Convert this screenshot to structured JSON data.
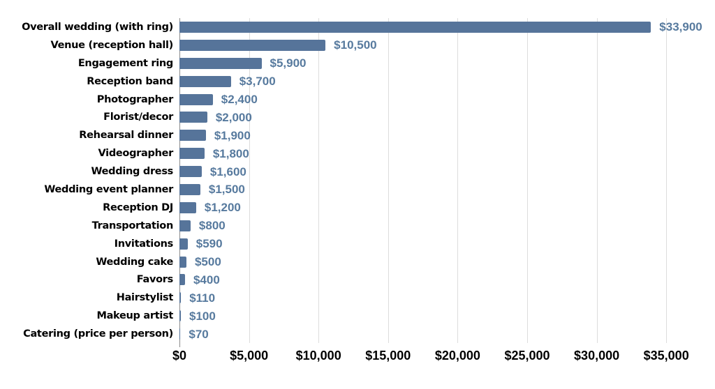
{
  "chart_data": {
    "type": "bar",
    "orientation": "horizontal",
    "title": "",
    "categories": [
      "Overall wedding (with ring)",
      "Venue (reception hall)",
      "Engagement ring",
      "Reception band",
      "Photographer",
      "Florist/decor",
      "Rehearsal dinner",
      "Videographer",
      "Wedding dress",
      "Wedding event planner",
      "Reception DJ",
      "Transportation",
      "Invitations",
      "Wedding cake",
      "Favors",
      "Hairstylist",
      "Makeup artist",
      "Catering (price per person)"
    ],
    "values": [
      33900,
      10500,
      5900,
      3700,
      2400,
      2000,
      1900,
      1800,
      1600,
      1500,
      1200,
      800,
      590,
      500,
      400,
      110,
      100,
      70
    ],
    "value_labels": [
      "$33,900",
      "$10,500",
      "$5,900",
      "$3,700",
      "$2,400",
      "$2,000",
      "$1,900",
      "$1,800",
      "$1,600",
      "$1,500",
      "$1,200",
      "$800",
      "$590",
      "$500",
      "$400",
      "$110",
      "$100",
      "$70"
    ],
    "x_ticks": [
      "$0",
      "$5,000",
      "$10,000",
      "$15,000",
      "$20,000",
      "$25,000",
      "$30,000",
      "$35,000"
    ],
    "x_tick_values": [
      0,
      5000,
      10000,
      15000,
      20000,
      25000,
      30000,
      35000
    ],
    "xlim": [
      0,
      38000
    ],
    "xlabel": "",
    "ylabel": "",
    "grid": "vertical",
    "legend_position": "none",
    "colors": {
      "bar": "#56749a",
      "value_label": "#577a9e",
      "category_label": "#000000",
      "gridline": "#dcdcdc",
      "axis_line": "#8a8a8a",
      "background": "#ffffff"
    }
  }
}
